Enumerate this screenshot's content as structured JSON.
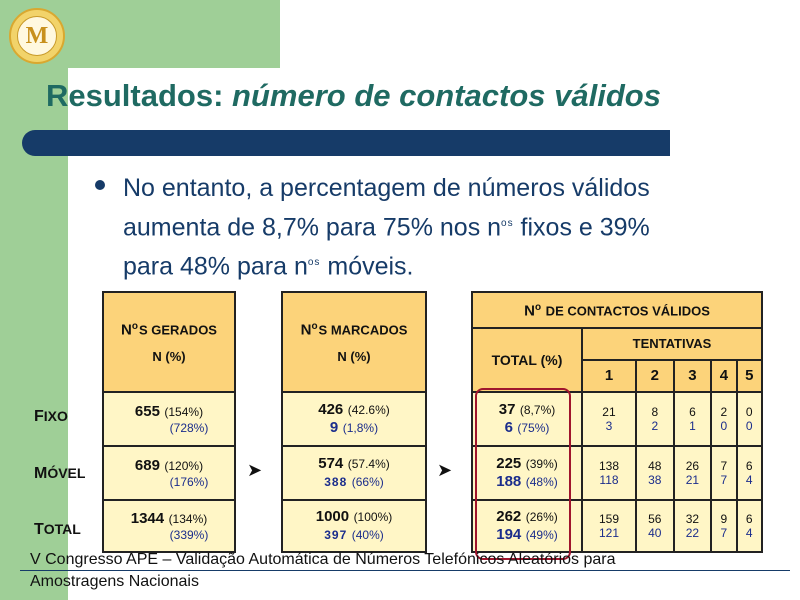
{
  "title": {
    "part1": "Resultados: ",
    "part2": "número de contactos válidos"
  },
  "logo": {
    "icon": "university-seal-icon",
    "text": "M"
  },
  "bullet": {
    "line1": "No entanto, a percentagem de números válidos",
    "line2a": "aumenta de 8,7% para 75% nos n",
    "line2sup": "os",
    "line2b": " fixos e 39%",
    "line3a": "para 48% para n",
    "line3sup": "os",
    "line3b": " móveis."
  },
  "row_labels": {
    "fixo": {
      "c": "F",
      "r": "IXO"
    },
    "movel": {
      "c": "M",
      "r": "ÓVEL"
    },
    "total": {
      "c": "T",
      "r": "OTAL"
    }
  },
  "table1": {
    "header_a": "N",
    "header_sup": "o",
    "header_b": "S GERADOS",
    "header_n": "N (%)",
    "rows": [
      {
        "v": "655",
        "p": "(154%)",
        "p2": "(728%)"
      },
      {
        "v": "689",
        "p": "(120%)",
        "p2": "(176%)"
      },
      {
        "v": "1344",
        "p": "(134%)",
        "p2": "(339%)"
      }
    ]
  },
  "table2": {
    "header_a": "N",
    "header_sup": "o",
    "header_b": "S MARCADOS",
    "header_n": "N (%)",
    "rows": [
      {
        "v": "426",
        "p": "(42.6%)",
        "v2": "9",
        "p2": "(1,8%)"
      },
      {
        "v": "574",
        "p": "(57.4%)",
        "v2": "388",
        "p2": "(66%)"
      },
      {
        "v": "1000",
        "p": "(100%)",
        "v2": "397",
        "p2": "(40%)"
      }
    ]
  },
  "table3": {
    "header_a": "N",
    "header_sup": "o",
    "header_b": " DE CONTACTOS VÁLIDOS",
    "total_label": "TOTAL (%)",
    "tentativas": "TENTATIVAS",
    "attempts": [
      "1",
      "2",
      "3",
      "4",
      "5"
    ],
    "rows": [
      {
        "v": "37",
        "p": "(8,7%)",
        "v2": "6",
        "p2": "(75%)",
        "a": [
          "21",
          "8",
          "6",
          "2",
          "0"
        ],
        "b": [
          "3",
          "2",
          "1",
          "0",
          "0"
        ]
      },
      {
        "v": "225",
        "p": "(39%)",
        "v2": "188",
        "p2": "(48%)",
        "a": [
          "138",
          "48",
          "26",
          "7",
          "6"
        ],
        "b": [
          "118",
          "38",
          "21",
          "7",
          "4"
        ]
      },
      {
        "v": "262",
        "p": "(26%)",
        "v2": "194",
        "p2": "(49%)",
        "a": [
          "159",
          "56",
          "32",
          "9",
          "6"
        ],
        "b": [
          "121",
          "40",
          "22",
          "7",
          "4"
        ]
      }
    ]
  },
  "arrows": {
    "a1": "➤",
    "a2": "➤"
  },
  "footer": {
    "line1": "V Congresso APE – Validação Automática de Números Telefónicos Aleatórios para",
    "line2": "Amostragens Nacionais"
  }
}
